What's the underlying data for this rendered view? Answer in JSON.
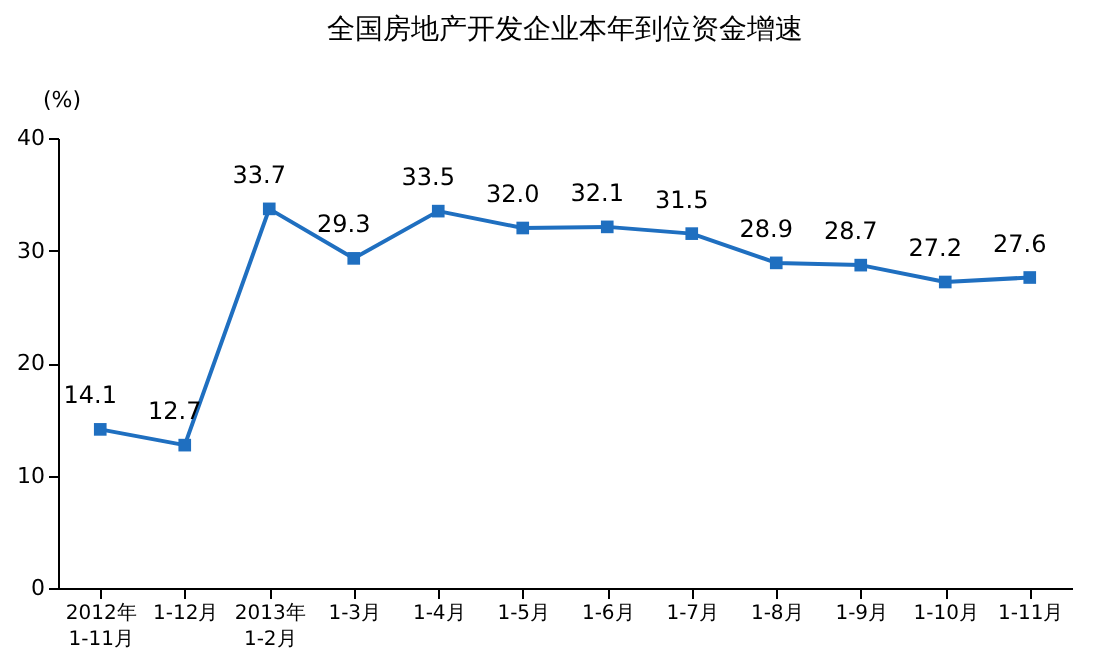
{
  "chart_data": {
    "type": "line",
    "title": "全国房地产开发企业本年到位资金增速",
    "ylabel": "(%)",
    "categories": [
      "2012年\n1-11月",
      "1-12月",
      "2013年\n1-2月",
      "1-3月",
      "1-4月",
      "1-5月",
      "1-6月",
      "1-7月",
      "1-8月",
      "1-9月",
      "1-10月",
      "1-11月"
    ],
    "series": [
      {
        "color": "#1f6fc0",
        "values": [
          14.1,
          12.7,
          33.7,
          29.3,
          33.5,
          32.0,
          32.1,
          31.5,
          28.9,
          28.7,
          27.2,
          27.6
        ]
      }
    ],
    "value_labels": [
      "14.1",
      "12.7",
      "33.7",
      "29.3",
      "33.5",
      "32.0",
      "32.1",
      "31.5",
      "28.9",
      "28.7",
      "27.2",
      "27.6"
    ],
    "ylim": [
      0,
      40
    ],
    "yticks": [
      0,
      10,
      20,
      30,
      40
    ],
    "grid": false,
    "marker": "square",
    "line_style": "solid"
  }
}
